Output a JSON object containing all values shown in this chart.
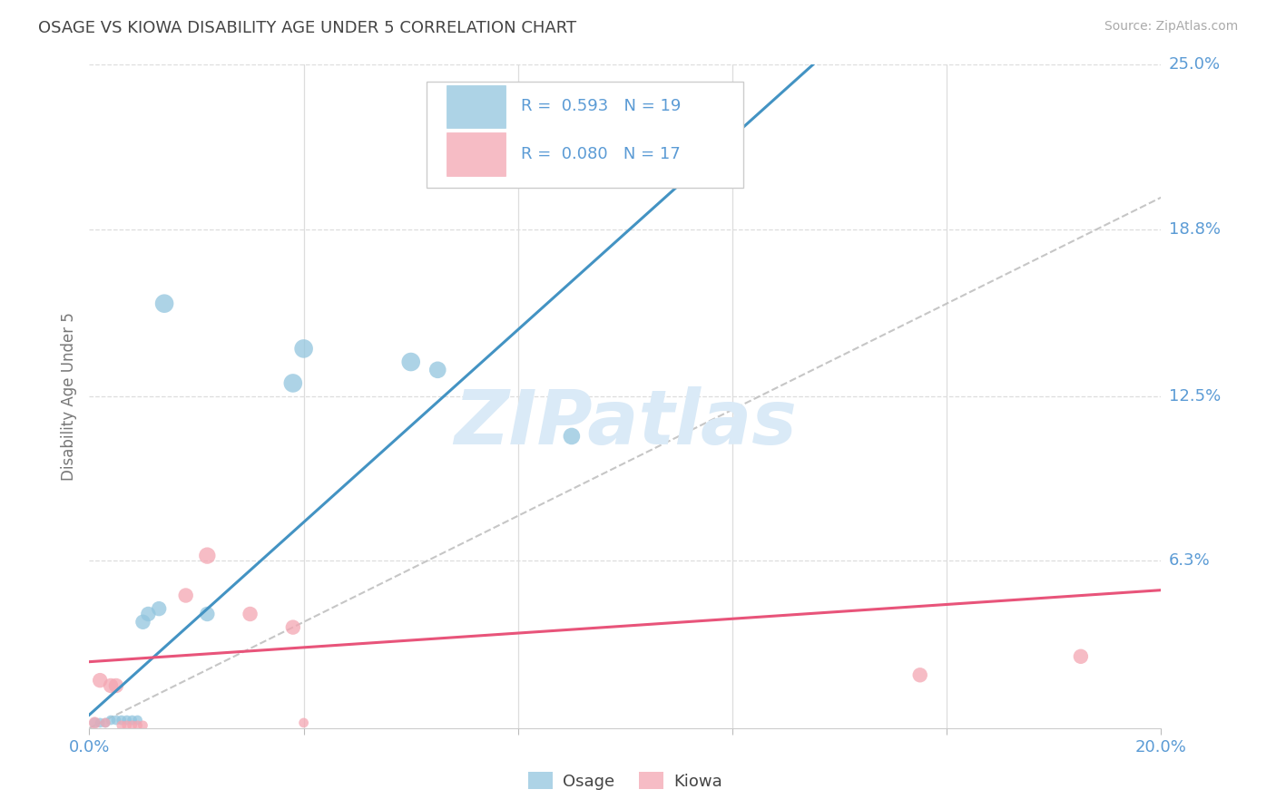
{
  "title": "OSAGE VS KIOWA DISABILITY AGE UNDER 5 CORRELATION CHART",
  "source": "Source: ZipAtlas.com",
  "ylabel": "Disability Age Under 5",
  "osage_R": "0.593",
  "osage_N": "19",
  "kiowa_R": "0.080",
  "kiowa_N": "17",
  "osage_color": "#92c5de",
  "kiowa_color": "#f4a6b2",
  "osage_line_color": "#4393c3",
  "kiowa_line_color": "#e8547a",
  "diag_color": "#c0c0c0",
  "background_color": "#ffffff",
  "grid_color": "#dddddd",
  "title_color": "#444444",
  "axis_tick_color": "#5b9bd5",
  "legend_text_color": "#5b9bd5",
  "watermark": "ZIPatlas",
  "watermark_color": "#daeaf7",
  "xlim": [
    0.0,
    0.2
  ],
  "ylim": [
    0.0,
    0.25
  ],
  "osage_line_x0": 0.0,
  "osage_line_y0": 0.005,
  "osage_line_x1": 0.135,
  "osage_line_y1": 0.25,
  "kiowa_line_x0": 0.0,
  "kiowa_line_y0": 0.025,
  "kiowa_line_x1": 0.2,
  "kiowa_line_y1": 0.052,
  "osage_x": [
    0.001,
    0.002,
    0.003,
    0.004,
    0.005,
    0.006,
    0.007,
    0.008,
    0.009,
    0.01,
    0.011,
    0.013,
    0.014,
    0.022,
    0.038,
    0.04,
    0.06,
    0.065,
    0.09
  ],
  "osage_y": [
    0.002,
    0.002,
    0.002,
    0.003,
    0.003,
    0.003,
    0.003,
    0.003,
    0.003,
    0.04,
    0.043,
    0.045,
    0.16,
    0.043,
    0.13,
    0.143,
    0.138,
    0.135,
    0.11
  ],
  "osage_s": [
    70,
    60,
    60,
    60,
    60,
    60,
    60,
    60,
    60,
    140,
    140,
    140,
    220,
    140,
    220,
    220,
    220,
    180,
    180
  ],
  "kiowa_x": [
    0.001,
    0.002,
    0.003,
    0.004,
    0.005,
    0.006,
    0.007,
    0.008,
    0.009,
    0.018,
    0.022,
    0.03,
    0.038,
    0.04,
    0.155,
    0.185,
    0.01
  ],
  "kiowa_y": [
    0.002,
    0.018,
    0.002,
    0.016,
    0.016,
    0.001,
    0.001,
    0.001,
    0.001,
    0.05,
    0.065,
    0.043,
    0.038,
    0.002,
    0.02,
    0.027,
    0.001
  ],
  "kiowa_s": [
    90,
    140,
    60,
    140,
    140,
    60,
    60,
    60,
    60,
    140,
    175,
    140,
    140,
    60,
    140,
    140,
    60
  ],
  "y_ticks_right": [
    0.063,
    0.125,
    0.188,
    0.25
  ],
  "y_tick_labels_right": [
    "6.3%",
    "12.5%",
    "18.8%",
    "25.0%"
  ],
  "x_ticks": [
    0.0,
    0.04,
    0.08,
    0.12,
    0.16,
    0.2
  ],
  "x_tick_labels": [
    "0.0%",
    "",
    "",
    "",
    "",
    "20.0%"
  ]
}
